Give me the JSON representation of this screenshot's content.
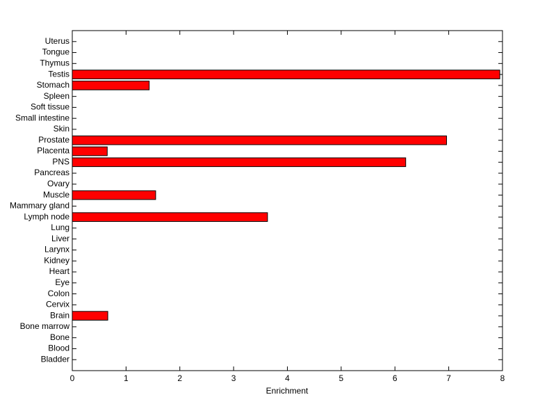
{
  "chart_data": {
    "type": "barh",
    "categories": [
      "Bladder",
      "Blood",
      "Bone",
      "Bone marrow",
      "Brain",
      "Cervix",
      "Colon",
      "Eye",
      "Heart",
      "Kidney",
      "Larynx",
      "Liver",
      "Lung",
      "Lymph node",
      "Mammary gland",
      "Muscle",
      "Ovary",
      "Pancreas",
      "PNS",
      "Placenta",
      "Prostate",
      "Skin",
      "Small intestine",
      "Soft tissue",
      "Spleen",
      "Stomach",
      "Testis",
      "Thymus",
      "Tongue",
      "Uterus"
    ],
    "values": [
      0,
      0,
      0,
      0,
      0.66,
      0,
      0,
      0,
      0,
      0,
      0,
      0,
      0,
      3.63,
      0,
      1.55,
      0,
      0,
      6.2,
      0.65,
      6.96,
      0,
      0,
      0,
      0,
      1.43,
      7.95,
      0,
      0,
      0
    ],
    "color": "#ff0000",
    "x_label": "Enrichment",
    "xlim": [
      0,
      8
    ],
    "xticks": [
      0,
      1,
      2,
      3,
      4,
      5,
      6,
      7,
      8
    ]
  }
}
